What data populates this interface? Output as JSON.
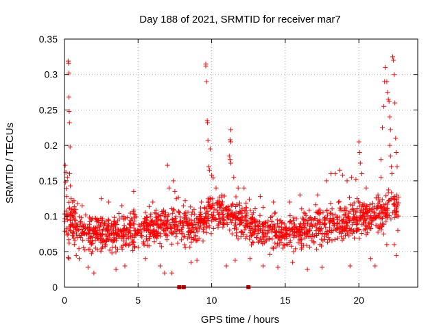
{
  "chart_data": {
    "type": "scatter",
    "title": "Day 188 of 2021, SRMTID for receiver mar7",
    "xlabel": "GPS time / hours",
    "ylabel": "SRMTID / TECUs",
    "xlim": [
      0,
      24
    ],
    "ylim": [
      0,
      0.35
    ],
    "grid": true,
    "x_ticks": [
      {
        "value": 0,
        "label": "0"
      },
      {
        "value": 5,
        "label": "5"
      },
      {
        "value": 10,
        "label": "10"
      },
      {
        "value": 15,
        "label": "15"
      },
      {
        "value": 20,
        "label": "20"
      }
    ],
    "y_ticks": [
      {
        "value": 0,
        "label": "0"
      },
      {
        "value": 0.05,
        "label": "0.05"
      },
      {
        "value": 0.1,
        "label": "0.1"
      },
      {
        "value": 0.15,
        "label": "0.15"
      },
      {
        "value": 0.2,
        "label": "0.2"
      },
      {
        "value": 0.25,
        "label": "0.25"
      },
      {
        "value": 0.3,
        "label": "0.3"
      },
      {
        "value": 0.35,
        "label": "0.35"
      }
    ],
    "series": [
      {
        "name": "SRMTID",
        "marker": "plus",
        "color": "#ff0000",
        "points": [
          [
            0.05,
            0.172
          ],
          [
            0.08,
            0.148
          ],
          [
            0.1,
            0.162
          ],
          [
            0.12,
            0.139
          ],
          [
            0.15,
            0.128
          ],
          [
            0.2,
            0.155
          ],
          [
            0.25,
            0.319
          ],
          [
            0.28,
            0.316
          ],
          [
            0.3,
            0.302
          ],
          [
            0.3,
            0.268
          ],
          [
            0.32,
            0.248
          ],
          [
            0.34,
            0.232
          ],
          [
            0.38,
            0.198
          ],
          [
            0.35,
            0.16
          ],
          [
            0.4,
            0.143
          ],
          [
            0.45,
            0.125
          ],
          [
            0.55,
            0.12
          ],
          [
            0.65,
            0.122
          ],
          [
            0.2,
            0.095
          ],
          [
            0.25,
            0.042
          ],
          [
            0.3,
            0.04
          ],
          [
            0.5,
            0.11
          ],
          [
            0.7,
            0.105
          ],
          [
            0.9,
            0.118
          ],
          [
            1.2,
            0.115
          ],
          [
            0.8,
            0.045
          ],
          [
            1.0,
            0.04
          ],
          [
            1.6,
            0.028
          ],
          [
            2.0,
            0.02
          ],
          [
            2.5,
            0.125
          ],
          [
            3.0,
            0.12
          ],
          [
            3.5,
            0.025
          ],
          [
            3.9,
            0.115
          ],
          [
            4.1,
            0.03
          ],
          [
            4.7,
            0.135
          ],
          [
            5.5,
            0.04
          ],
          [
            6.0,
            0.12
          ],
          [
            6.5,
            0.03
          ],
          [
            6.8,
            0.02
          ],
          [
            7.0,
            0.172
          ],
          [
            7.1,
            0.14
          ],
          [
            7.4,
            0.15
          ],
          [
            7.5,
            0.135
          ],
          [
            7.6,
            0.125
          ],
          [
            7.3,
            0.02
          ],
          [
            8.2,
            0.122
          ],
          [
            8.6,
            0.035
          ],
          [
            9.0,
            0.038
          ],
          [
            9.3,
            0.12
          ],
          [
            9.6,
            0.315
          ],
          [
            9.6,
            0.312
          ],
          [
            9.65,
            0.29
          ],
          [
            9.7,
            0.235
          ],
          [
            9.72,
            0.232
          ],
          [
            9.75,
            0.207
          ],
          [
            9.9,
            0.195
          ],
          [
            9.8,
            0.17
          ],
          [
            9.85,
            0.165
          ],
          [
            10.0,
            0.158
          ],
          [
            10.1,
            0.154
          ],
          [
            10.3,
            0.14
          ],
          [
            10.7,
            0.13
          ],
          [
            11.3,
            0.222
          ],
          [
            11.25,
            0.208
          ],
          [
            11.3,
            0.205
          ],
          [
            11.2,
            0.185
          ],
          [
            11.25,
            0.18
          ],
          [
            11.3,
            0.175
          ],
          [
            11.5,
            0.155
          ],
          [
            11.8,
            0.14
          ],
          [
            11.0,
            0.03
          ],
          [
            11.6,
            0.038
          ],
          [
            12.2,
            0.14
          ],
          [
            12.6,
            0.04
          ],
          [
            13.3,
            0.128
          ],
          [
            13.5,
            0.03
          ],
          [
            14.2,
            0.12
          ],
          [
            14.5,
            0.028
          ],
          [
            15.3,
            0.12
          ],
          [
            15.5,
            0.035
          ],
          [
            16.0,
            0.13
          ],
          [
            16.5,
            0.025
          ],
          [
            17.2,
            0.13
          ],
          [
            17.5,
            0.028
          ],
          [
            17.8,
            0.15
          ],
          [
            18.1,
            0.16
          ],
          [
            18.4,
            0.16
          ],
          [
            18.7,
            0.165
          ],
          [
            18.9,
            0.158
          ],
          [
            19.2,
            0.15
          ],
          [
            19.5,
            0.155
          ],
          [
            19.8,
            0.152
          ],
          [
            20.0,
            0.205
          ],
          [
            20.05,
            0.19
          ],
          [
            20.1,
            0.175
          ],
          [
            20.2,
            0.16
          ],
          [
            20.5,
            0.14
          ],
          [
            19.4,
            0.03
          ],
          [
            20.8,
            0.04
          ],
          [
            21.1,
            0.03
          ],
          [
            21.3,
            0.13
          ],
          [
            21.5,
            0.155
          ],
          [
            21.5,
            0.18
          ],
          [
            21.6,
            0.225
          ],
          [
            21.7,
            0.255
          ],
          [
            21.75,
            0.29
          ],
          [
            21.8,
            0.31
          ],
          [
            21.9,
            0.29
          ],
          [
            21.95,
            0.275
          ],
          [
            22.0,
            0.265
          ],
          [
            22.05,
            0.262
          ],
          [
            22.1,
            0.24
          ],
          [
            22.15,
            0.222
          ],
          [
            22.1,
            0.2
          ],
          [
            22.15,
            0.185
          ],
          [
            22.2,
            0.17
          ],
          [
            22.25,
            0.16
          ],
          [
            22.3,
            0.325
          ],
          [
            22.35,
            0.32
          ],
          [
            22.4,
            0.3
          ],
          [
            22.45,
            0.26
          ],
          [
            22.5,
            0.21
          ],
          [
            22.55,
            0.19
          ],
          [
            22.6,
            0.17
          ],
          [
            22.55,
            0.12
          ],
          [
            22.6,
            0.1
          ],
          [
            22.65,
            0.08
          ],
          [
            22.55,
            0.045
          ],
          [
            22.4,
            0.06
          ],
          [
            21.9,
            0.06
          ]
        ]
      }
    ],
    "dense_band": {
      "description_free": true,
      "x_range": [
        0,
        22.7
      ],
      "envelope": [
        [
          0,
          0.06,
          0.13
        ],
        [
          1,
          0.045,
          0.12
        ],
        [
          2,
          0.04,
          0.115
        ],
        [
          3,
          0.04,
          0.11
        ],
        [
          4,
          0.04,
          0.115
        ],
        [
          5,
          0.045,
          0.12
        ],
        [
          6,
          0.045,
          0.12
        ],
        [
          7,
          0.05,
          0.12
        ],
        [
          8,
          0.05,
          0.125
        ],
        [
          9,
          0.05,
          0.125
        ],
        [
          9.5,
          0.06,
          0.135
        ],
        [
          10,
          0.07,
          0.145
        ],
        [
          11,
          0.065,
          0.14
        ],
        [
          12,
          0.06,
          0.13
        ],
        [
          13,
          0.05,
          0.12
        ],
        [
          14,
          0.045,
          0.11
        ],
        [
          15,
          0.045,
          0.11
        ],
        [
          16,
          0.05,
          0.115
        ],
        [
          17,
          0.05,
          0.12
        ],
        [
          18,
          0.055,
          0.125
        ],
        [
          19,
          0.055,
          0.13
        ],
        [
          20,
          0.06,
          0.13
        ],
        [
          21,
          0.065,
          0.14
        ],
        [
          22,
          0.07,
          0.15
        ],
        [
          22.7,
          0.07,
          0.15
        ]
      ],
      "count": 1600
    },
    "zero_markers": {
      "marker": "square",
      "color": "#dd0000",
      "x": [
        7.8,
        8.1,
        12.5
      ],
      "y": [
        0,
        0,
        0
      ]
    }
  }
}
